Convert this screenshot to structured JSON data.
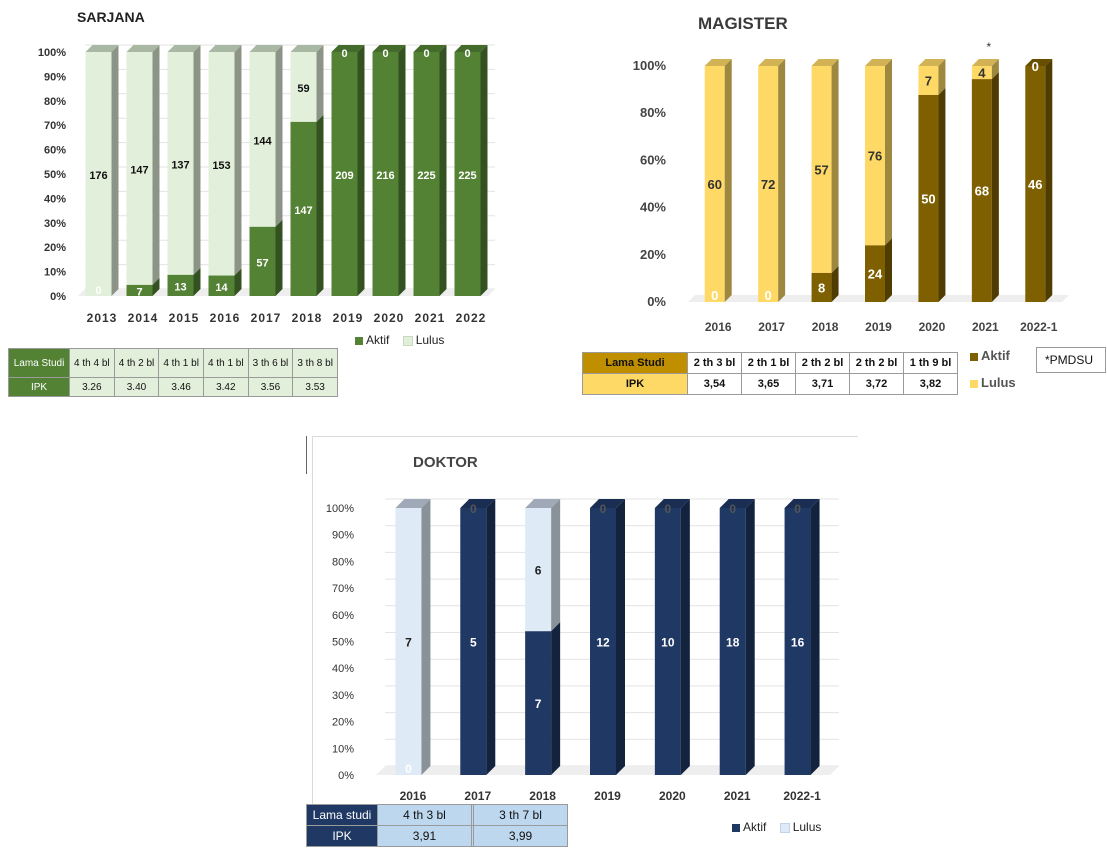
{
  "chart_data": [
    {
      "id": "sarjana",
      "type": "bar",
      "stacked": "percent",
      "title": "SARJANA",
      "categories": [
        "2013",
        "2014",
        "2015",
        "2016",
        "2017",
        "2018",
        "2019",
        "2020",
        "2021",
        "2022"
      ],
      "yticks": [
        "0%",
        "10%",
        "20%",
        "30%",
        "40%",
        "50%",
        "60%",
        "70%",
        "80%",
        "90%",
        "100%"
      ],
      "series": [
        {
          "name": "Aktif",
          "values": [
            0,
            7,
            13,
            14,
            57,
            147,
            209,
            216,
            225,
            225
          ],
          "labels": [
            "0",
            "7",
            "13",
            "14",
            "57",
            "147",
            "209",
            "216",
            "225",
            "225"
          ],
          "color": "#548235"
        },
        {
          "name": "Lulus",
          "values": [
            176,
            147,
            137,
            153,
            144,
            59,
            0,
            0,
            0,
            0
          ],
          "labels": [
            "176",
            "147",
            "137",
            "153",
            "144",
            "59",
            "0",
            "0",
            "0",
            "0"
          ],
          "color": "#e2efda"
        }
      ],
      "legend": "bottom-right",
      "table": {
        "headers": [
          "Lama Studi",
          "4 th 4 bl",
          "4 th 2 bl",
          "4 th 1 bl",
          "4 th 1 bl",
          "3 th 6 bl",
          "3 th 8 bl"
        ],
        "rows": [
          [
            "IPK",
            "3.26",
            "3.40",
            "3.46",
            "3.42",
            "3.56",
            "3.53"
          ]
        ]
      }
    },
    {
      "id": "magister",
      "type": "bar",
      "stacked": "percent",
      "title": "MAGISTER",
      "categories": [
        "2016",
        "2017",
        "2018",
        "2019",
        "2020",
        "2021",
        "2022-1"
      ],
      "yticks": [
        "0%",
        "20%",
        "40%",
        "60%",
        "80%",
        "100%"
      ],
      "series": [
        {
          "name": "Aktif",
          "values": [
            0,
            0,
            8,
            24,
            50,
            68,
            46
          ],
          "labels": [
            "0",
            "0",
            "8",
            "24",
            "50",
            "68",
            "46"
          ],
          "color": "#7f6000"
        },
        {
          "name": "Lulus",
          "values": [
            60,
            72,
            57,
            76,
            7,
            4,
            0
          ],
          "labels": [
            "60",
            "72",
            "57",
            "76",
            "7",
            "4",
            "0"
          ],
          "color": "#ffd966"
        }
      ],
      "annotation": "*",
      "note": "*PMDSU",
      "legend": "right",
      "table": {
        "headers": [
          "Lama Studi",
          "2 th 3 bl",
          "2 th 1 bl",
          "2 th 2 bl",
          "2 th 2 bl",
          "1 th 9 bl"
        ],
        "rows": [
          [
            "IPK",
            "3,54",
            "3,65",
            "3,71",
            "3,72",
            "3,82"
          ]
        ]
      }
    },
    {
      "id": "doktor",
      "type": "bar",
      "stacked": "percent",
      "title": "DOKTOR",
      "categories": [
        "2016",
        "2017",
        "2018",
        "2019",
        "2020",
        "2021",
        "2022-1"
      ],
      "yticks": [
        "0%",
        "10%",
        "20%",
        "30%",
        "40%",
        "50%",
        "60%",
        "70%",
        "80%",
        "90%",
        "100%"
      ],
      "series": [
        {
          "name": "Aktif",
          "values": [
            0,
            5,
            7,
            12,
            10,
            18,
            16
          ],
          "labels": [
            "0",
            "5",
            "7",
            "12",
            "10",
            "18",
            "16"
          ],
          "color": "#1f3864"
        },
        {
          "name": "Lulus",
          "values": [
            7,
            0,
            6,
            0,
            0,
            0,
            0
          ],
          "labels": [
            "7",
            "0",
            "6",
            "0",
            "0",
            "0",
            "0"
          ],
          "color": "#deebf7"
        }
      ],
      "legend": "bottom-right",
      "table": {
        "headers": [
          "Lama studi",
          "4 th 3 bl",
          "",
          "3 th 7 bl"
        ],
        "rows": [
          [
            "IPK",
            "3,91",
            "",
            "3,99"
          ]
        ]
      }
    }
  ]
}
